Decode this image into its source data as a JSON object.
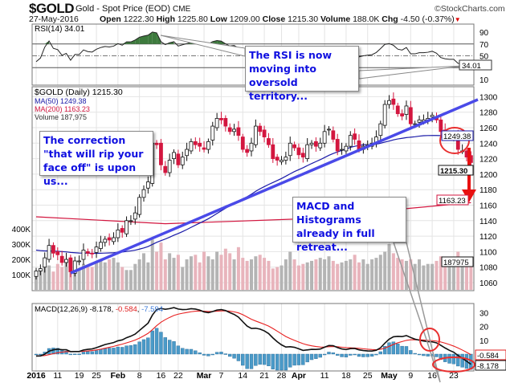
{
  "header": {
    "symbol": "$GOLD",
    "name": "Gold - Spot Price (EOD)",
    "exchange": "CME",
    "source": "©StockCharts.com",
    "date": "27-May-2016",
    "open_label": "Open",
    "open": "1222.30",
    "high_label": "High",
    "high": "1225.80",
    "low_label": "Low",
    "low": "1209.00",
    "close_label": "Close",
    "close": "1215.30",
    "volume_label": "Volume",
    "volume": "188.0K",
    "chg_label": "Chg",
    "chg": "-4.50 (-0.37%)"
  },
  "legends": {
    "rsi": "RSI(14) 34.01",
    "price": "$GOLD (Daily) 1215.30",
    "ma50": "MA(50) 1249.38",
    "ma200": "MA(200) 1163.23",
    "volume": "Volume 187,975",
    "macd_name": "MACD(12,26,9)",
    "macd": "-8.178",
    "macd_signal": "-0.584",
    "macd_hist": "-7.594"
  },
  "tags": {
    "rsi": "34.01",
    "ma50": "1249.38",
    "close": "1215.30",
    "ma200": "1163.23",
    "volume": "187975",
    "macd_signal": "-0.584",
    "macd": "-8.178"
  },
  "annotations": {
    "rsi_note": "The RSI is now moving into oversold territory...",
    "correction_note": "The correction \"that will rip your face off\" is upon us...",
    "macd_note": "MACD and Histograms already in full retreat..."
  },
  "colors": {
    "up": "#ffffff",
    "down": "#d3163f",
    "ma50": "#1a1aa8",
    "ma200": "#d3163f",
    "trend": "#4a4ae8",
    "rsi_fill": "#3d7a3d",
    "hist": "#4a9ac8",
    "vol_up": "#b4b4b4",
    "vol_down": "#e8b4bc",
    "annotation": "#1010e0",
    "circle": "#e83030"
  },
  "chart_data": {
    "type": "candlestick",
    "title": "$GOLD Gold - Spot Price (EOD) CME",
    "x_ticks": [
      {
        "i": 0,
        "label": "2016",
        "bold": true
      },
      {
        "i": 5,
        "label": "11"
      },
      {
        "i": 10,
        "label": "19"
      },
      {
        "i": 14,
        "label": "25"
      },
      {
        "i": 19,
        "label": "Feb",
        "bold": true
      },
      {
        "i": 24,
        "label": "8"
      },
      {
        "i": 29,
        "label": "16"
      },
      {
        "i": 33,
        "label": "22"
      },
      {
        "i": 39,
        "label": "Mar",
        "bold": true
      },
      {
        "i": 43,
        "label": "7"
      },
      {
        "i": 48,
        "label": "14"
      },
      {
        "i": 53,
        "label": "21"
      },
      {
        "i": 57,
        "label": "28"
      },
      {
        "i": 61,
        "label": "Apr",
        "bold": true
      },
      {
        "i": 67,
        "label": "11"
      },
      {
        "i": 72,
        "label": "18"
      },
      {
        "i": 77,
        "label": "25"
      },
      {
        "i": 82,
        "label": "May",
        "bold": true
      },
      {
        "i": 87,
        "label": "9"
      },
      {
        "i": 92,
        "label": "16"
      },
      {
        "i": 97,
        "label": "23"
      }
    ],
    "price_ticks": [
      "1060",
      "1080",
      "1100",
      "1120",
      "1140",
      "1160",
      "1180",
      "1200",
      "1220",
      "1240",
      "1260",
      "1280",
      "1300"
    ],
    "volume_ticks": [
      "100K",
      "200K",
      "300K",
      "400K"
    ],
    "rsi_ticks": [
      "10",
      "50",
      "70",
      "90"
    ],
    "macd_ticks": [
      "10",
      "20",
      "30"
    ],
    "ylim_price": [
      1050,
      1310
    ],
    "close": [
      1075,
      1078,
      1092,
      1108,
      1098,
      1096,
      1086,
      1090,
      1074,
      1088,
      1088,
      1102,
      1098,
      1097,
      1106,
      1112,
      1116,
      1115,
      1118,
      1128,
      1125,
      1140,
      1140,
      1150,
      1170,
      1180,
      1190,
      1240,
      1238,
      1212,
      1202,
      1218,
      1228,
      1212,
      1222,
      1232,
      1242,
      1238,
      1236,
      1232,
      1242,
      1262,
      1272,
      1270,
      1262,
      1255,
      1258,
      1250,
      1232,
      1228,
      1240,
      1262,
      1255,
      1248,
      1238,
      1220,
      1218,
      1218,
      1222,
      1240,
      1234,
      1225,
      1222,
      1238,
      1240,
      1236,
      1240,
      1255,
      1258,
      1245,
      1230,
      1232,
      1236,
      1250,
      1245,
      1232,
      1236,
      1238,
      1240,
      1248,
      1265,
      1290,
      1295,
      1290,
      1278,
      1275,
      1288,
      1265,
      1265,
      1270,
      1270,
      1272,
      1276,
      1270,
      1255,
      1250,
      1248,
      1248,
      1232,
      1230,
      1222,
      1215
    ],
    "volume_k": [
      95,
      130,
      150,
      160,
      120,
      170,
      150,
      200,
      140,
      160,
      140,
      170,
      150,
      150,
      180,
      200,
      180,
      200,
      210,
      180,
      150,
      130,
      130,
      170,
      200,
      240,
      180,
      330,
      250,
      310,
      200,
      240,
      210,
      230,
      150,
      200,
      220,
      230,
      180,
      250,
      220,
      200,
      250,
      230,
      270,
      240,
      200,
      280,
      210,
      190,
      200,
      220,
      230,
      210,
      190,
      140,
      150,
      160,
      200,
      250,
      200,
      160,
      170,
      180,
      190,
      200,
      210,
      200,
      220,
      190,
      170,
      180,
      190,
      200,
      230,
      180,
      200,
      170,
      200,
      210,
      230,
      250,
      300,
      240,
      210,
      200,
      190,
      200,
      170,
      200,
      160,
      170,
      170,
      190,
      220,
      200,
      210,
      180,
      250,
      200,
      190,
      188
    ],
    "ma200_points": [
      [
        0,
        1145
      ],
      [
        30,
        1136
      ],
      [
        60,
        1142
      ],
      [
        85,
        1155
      ],
      [
        101,
        1163.23
      ]
    ],
    "trendline": [
      [
        8,
        1078
      ],
      [
        101,
        1300
      ]
    ]
  }
}
